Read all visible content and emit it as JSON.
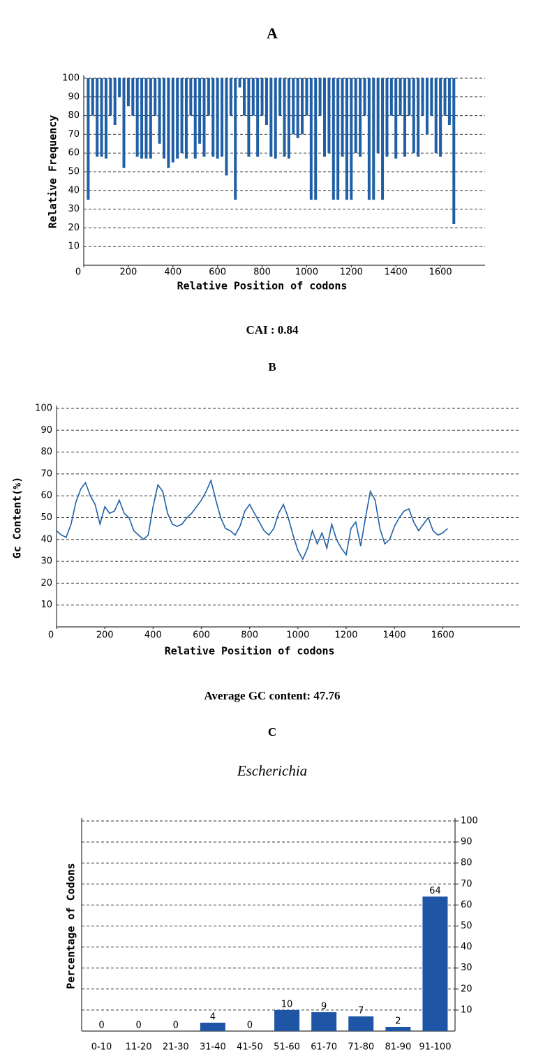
{
  "chart_data": [
    {
      "type": "spike",
      "label": "A",
      "caption": "CAI : 0.84",
      "xlabel": "Relative Position of codons",
      "ylabel": "Relative Frequency",
      "color": "#1f5fa6",
      "grid": true,
      "xlim": [
        0,
        1800
      ],
      "xticks": [
        0,
        200,
        400,
        600,
        800,
        1000,
        1200,
        1400,
        1600
      ],
      "ylim": [
        0,
        100
      ],
      "yticks": [
        10,
        20,
        30,
        40,
        50,
        60,
        70,
        80,
        90,
        100
      ],
      "x": [
        20,
        40,
        60,
        80,
        100,
        120,
        140,
        160,
        180,
        200,
        220,
        240,
        260,
        280,
        300,
        320,
        340,
        360,
        380,
        400,
        420,
        440,
        460,
        480,
        500,
        520,
        540,
        560,
        580,
        600,
        620,
        640,
        660,
        680,
        700,
        720,
        740,
        760,
        780,
        800,
        820,
        840,
        860,
        880,
        900,
        920,
        940,
        960,
        980,
        1000,
        1020,
        1040,
        1060,
        1080,
        1100,
        1120,
        1140,
        1160,
        1180,
        1200,
        1220,
        1240,
        1260,
        1280,
        1300,
        1320,
        1340,
        1360,
        1380,
        1400,
        1420,
        1440,
        1460,
        1480,
        1500,
        1520,
        1540,
        1560,
        1580,
        1600,
        1620,
        1640,
        1660
      ],
      "values": [
        35,
        80,
        58,
        58,
        57,
        80,
        75,
        90,
        52,
        85,
        80,
        58,
        57,
        57,
        57,
        80,
        65,
        57,
        52,
        55,
        57,
        60,
        57,
        80,
        57,
        65,
        58,
        80,
        58,
        57,
        58,
        48,
        80,
        35,
        95,
        80,
        58,
        80,
        58,
        80,
        75,
        58,
        57,
        80,
        58,
        57,
        70,
        68,
        70,
        80,
        35,
        35,
        80,
        58,
        60,
        35,
        35,
        58,
        35,
        35,
        60,
        58,
        80,
        35,
        35,
        60,
        35,
        58,
        80,
        57,
        80,
        58,
        80,
        60,
        58,
        80,
        70,
        80,
        60,
        58,
        80,
        75,
        22
      ]
    },
    {
      "type": "line",
      "label": "B",
      "caption": "Average GC content: 47.76",
      "xlabel": "Relative Position of codons",
      "ylabel": "Gc Content(%)",
      "color": "#1f5fa6",
      "grid": true,
      "xlim": [
        0,
        1920
      ],
      "xticks": [
        0,
        200,
        400,
        600,
        800,
        1000,
        1200,
        1400,
        1600
      ],
      "ylim": [
        0,
        100
      ],
      "yticks": [
        10,
        20,
        30,
        40,
        50,
        60,
        70,
        80,
        90,
        100
      ],
      "x": [
        0,
        20,
        40,
        60,
        80,
        100,
        120,
        140,
        160,
        180,
        200,
        220,
        240,
        260,
        280,
        300,
        320,
        340,
        360,
        380,
        400,
        420,
        440,
        460,
        480,
        500,
        520,
        540,
        560,
        580,
        600,
        620,
        640,
        660,
        680,
        700,
        720,
        740,
        760,
        780,
        800,
        820,
        840,
        860,
        880,
        900,
        920,
        940,
        960,
        980,
        1000,
        1020,
        1040,
        1060,
        1080,
        1100,
        1120,
        1140,
        1160,
        1180,
        1200,
        1220,
        1240,
        1260,
        1280,
        1300,
        1320,
        1340,
        1360,
        1380,
        1400,
        1420,
        1440,
        1460,
        1480,
        1500,
        1520,
        1540,
        1560,
        1580,
        1600,
        1620
      ],
      "values": [
        44,
        42,
        41,
        47,
        57,
        63,
        66,
        60,
        56,
        47,
        55,
        52,
        53,
        58,
        52,
        50,
        44,
        42,
        40,
        42,
        55,
        65,
        62,
        52,
        47,
        46,
        47,
        50,
        52,
        55,
        58,
        62,
        67,
        58,
        50,
        45,
        44,
        42,
        46,
        53,
        56,
        52,
        48,
        44,
        42,
        45,
        52,
        56,
        50,
        42,
        35,
        31,
        36,
        44,
        38,
        43,
        36,
        47,
        40,
        36,
        33,
        45,
        48,
        37,
        50,
        62,
        58,
        45,
        38,
        40,
        46,
        50,
        53,
        54,
        48,
        44,
        47,
        50,
        44,
        42,
        43,
        45
      ]
    },
    {
      "type": "bar",
      "label": "C",
      "subtitle": "Escherichia",
      "ylabel": "Percentage of Codons",
      "color": "#1f55a5",
      "value_color": "#e03030",
      "grid": true,
      "y_axis_side": "right",
      "ylim": [
        0,
        100
      ],
      "yticks": [
        10,
        20,
        30,
        40,
        50,
        60,
        70,
        80,
        90,
        100
      ],
      "categories": [
        "0-10",
        "11-20",
        "21-30",
        "31-40",
        "41-50",
        "51-60",
        "61-70",
        "71-80",
        "81-90",
        "91-100"
      ],
      "values": [
        0,
        0,
        0,
        4,
        0,
        10,
        9,
        7,
        2,
        64
      ]
    }
  ]
}
